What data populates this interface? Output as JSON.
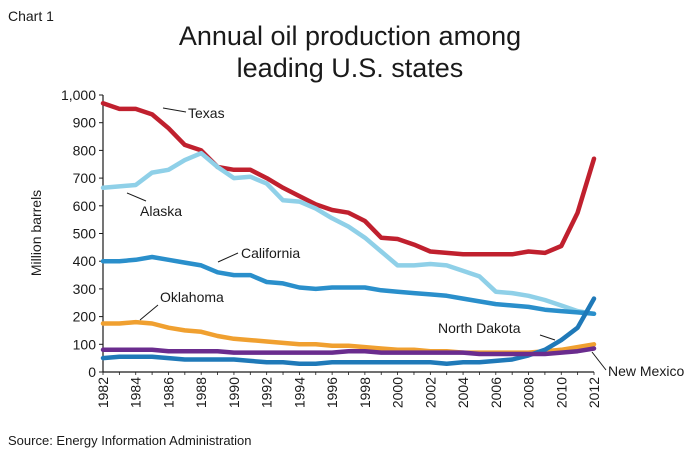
{
  "header": {
    "chart_number": "Chart 1",
    "title_line1": "Annual oil production among",
    "title_line2": "leading U.S. states"
  },
  "footer": {
    "source": "Source: Energy Information Administration"
  },
  "chart_data": {
    "type": "line",
    "title": "Annual oil production among leading U.S. states",
    "xlabel": "",
    "ylabel": "Million barrels",
    "ylim": [
      0,
      1000
    ],
    "xlim": [
      1982,
      2012
    ],
    "y_ticks": [
      0,
      100,
      200,
      300,
      400,
      500,
      600,
      700,
      800,
      900,
      1000
    ],
    "y_tick_labels": [
      "0",
      "100",
      "200",
      "300",
      "400",
      "500",
      "600",
      "700",
      "800",
      "900",
      "1,000"
    ],
    "x_ticks": [
      1982,
      1984,
      1986,
      1988,
      1990,
      1992,
      1994,
      1996,
      1998,
      2000,
      2002,
      2004,
      2006,
      2008,
      2010,
      2012
    ],
    "grid": false,
    "legend": "direct labels",
    "x": [
      1982,
      1983,
      1984,
      1985,
      1986,
      1987,
      1988,
      1989,
      1990,
      1991,
      1992,
      1993,
      1994,
      1995,
      1996,
      1997,
      1998,
      1999,
      2000,
      2001,
      2002,
      2003,
      2004,
      2005,
      2006,
      2007,
      2008,
      2009,
      2010,
      2011,
      2012
    ],
    "series": [
      {
        "name": "Texas",
        "color": "#c0202e",
        "values": [
          970,
          950,
          950,
          930,
          880,
          820,
          800,
          740,
          730,
          730,
          700,
          665,
          635,
          605,
          585,
          575,
          545,
          485,
          480,
          460,
          435,
          430,
          425,
          425,
          425,
          425,
          435,
          430,
          455,
          575,
          770
        ]
      },
      {
        "name": "Alaska",
        "color": "#8fd0e8",
        "values": [
          665,
          670,
          675,
          720,
          730,
          765,
          790,
          740,
          700,
          705,
          680,
          620,
          615,
          590,
          555,
          525,
          485,
          435,
          385,
          385,
          390,
          385,
          365,
          345,
          290,
          285,
          275,
          260,
          240,
          220,
          210
        ]
      },
      {
        "name": "California",
        "color": "#2a8fcb",
        "values": [
          400,
          400,
          405,
          415,
          405,
          395,
          385,
          360,
          350,
          350,
          325,
          320,
          305,
          300,
          305,
          305,
          305,
          295,
          290,
          285,
          280,
          275,
          265,
          255,
          245,
          240,
          235,
          225,
          220,
          215,
          210
        ]
      },
      {
        "name": "Oklahoma",
        "color": "#f0a030",
        "values": [
          175,
          175,
          180,
          175,
          160,
          150,
          145,
          130,
          120,
          115,
          110,
          105,
          100,
          100,
          95,
          95,
          90,
          85,
          80,
          80,
          75,
          75,
          70,
          70,
          70,
          70,
          70,
          75,
          80,
          90,
          100
        ]
      },
      {
        "name": "North Dakota",
        "color": "#1f79b8",
        "values": [
          50,
          55,
          55,
          55,
          50,
          45,
          45,
          45,
          45,
          40,
          35,
          35,
          30,
          30,
          35,
          35,
          35,
          35,
          35,
          35,
          35,
          30,
          35,
          35,
          40,
          45,
          60,
          80,
          115,
          160,
          265
        ]
      },
      {
        "name": "New Mexico",
        "color": "#6a2c8e",
        "values": [
          80,
          80,
          80,
          80,
          75,
          75,
          75,
          75,
          70,
          70,
          70,
          70,
          70,
          70,
          70,
          75,
          75,
          70,
          70,
          70,
          70,
          70,
          70,
          65,
          65,
          65,
          65,
          65,
          70,
          75,
          85
        ]
      }
    ],
    "annotations": [
      {
        "series": "Texas",
        "text": "Texas"
      },
      {
        "series": "Alaska",
        "text": "Alaska"
      },
      {
        "series": "California",
        "text": "California"
      },
      {
        "series": "Oklahoma",
        "text": "Oklahoma"
      },
      {
        "series": "North Dakota",
        "text": "North Dakota"
      },
      {
        "series": "New Mexico",
        "text": "New Mexico"
      }
    ]
  }
}
